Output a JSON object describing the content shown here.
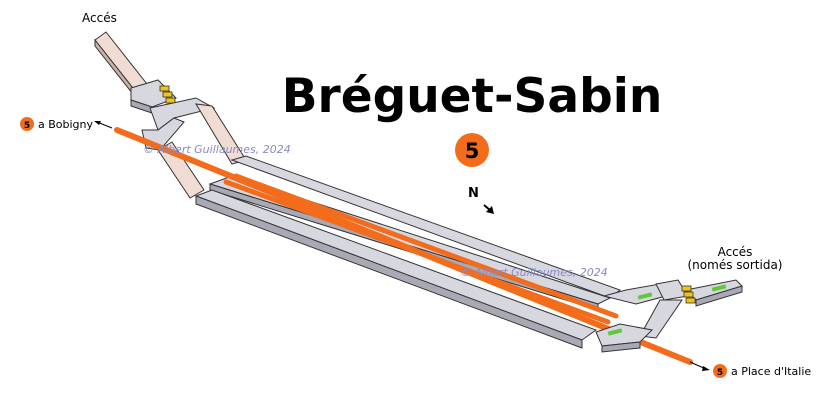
{
  "title": "Bréguet-Sabin",
  "line_badge": "5",
  "colors": {
    "line": "#f26c1b",
    "corridor_gray": "#d7d7e0",
    "corridor_gray_dark": "#a9a9b6",
    "passage_pink": "#f0dcd3",
    "gate_yellow": "#f0c419",
    "gate_green": "#5fc93a"
  },
  "compass": {
    "label": "N"
  },
  "entrances": {
    "top_left": "Accés",
    "right_line1": "Accés",
    "right_line2": "(només sortida)"
  },
  "directions": {
    "left": {
      "badge": "5",
      "label": "a Bobigny"
    },
    "right": {
      "badge": "5",
      "label": "a Place d'Italie"
    }
  },
  "watermarks": [
    "© Albert Guillaumes, 2024",
    "© Albert Guillaumes, 2024"
  ]
}
